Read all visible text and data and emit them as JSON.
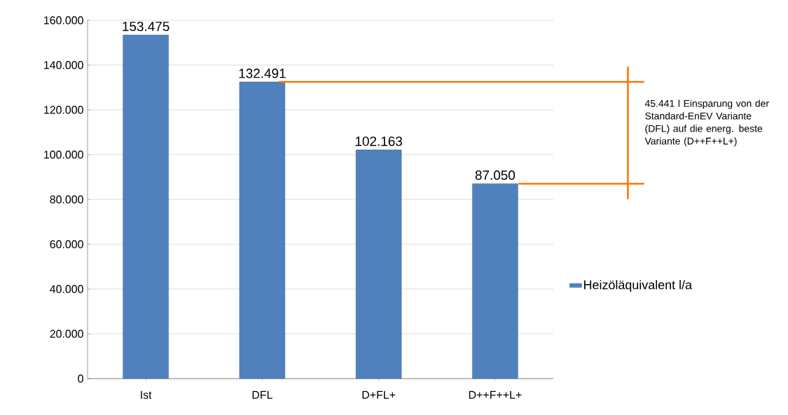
{
  "chart_data": {
    "type": "bar",
    "categories": [
      "Ist",
      "DFL",
      "D+FL+",
      "D++F++L+"
    ],
    "series": [
      {
        "name": "Heizöläquivalent l/a",
        "color": "#4f81bd",
        "values": [
          153475,
          132491,
          102163,
          87050
        ],
        "value_labels": [
          "153.475",
          "132.491",
          "102.163",
          "87.050"
        ]
      }
    ],
    "ylim": [
      0,
      160000
    ],
    "yticks": [
      {
        "value": 0,
        "label": "0"
      },
      {
        "value": 20000,
        "label": "20.000"
      },
      {
        "value": 40000,
        "label": "40.000"
      },
      {
        "value": 60000,
        "label": "60.000"
      },
      {
        "value": 80000,
        "label": "80.000"
      },
      {
        "value": 100000,
        "label": "100.000"
      },
      {
        "value": 120000,
        "label": "120.000"
      },
      {
        "value": 140000,
        "label": "140.000"
      },
      {
        "value": 160000,
        "label": "160.000"
      }
    ],
    "grid": "y",
    "legend": "right",
    "annotations": [
      "45.441 l Einsparung von der Standard-EnEV Variante (DFL) auf die energ. beste Variante (D++F++L+)"
    ]
  }
}
